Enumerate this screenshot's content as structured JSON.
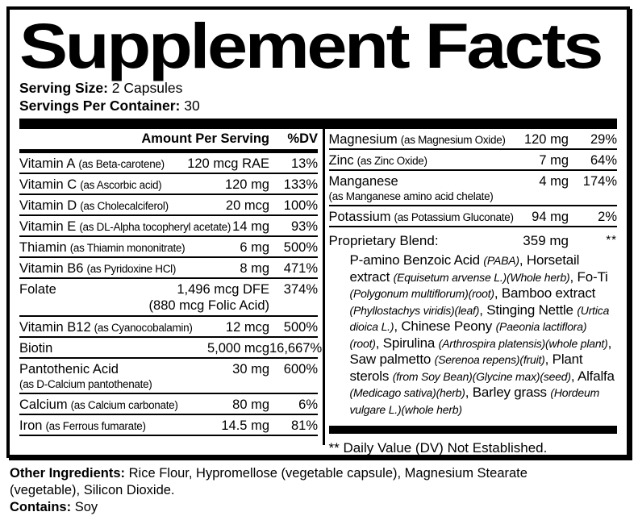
{
  "title": "Supplement Facts",
  "serving": {
    "size_label": "Serving Size:",
    "size_value": "2 Capsules",
    "container_label": "Servings Per Container:",
    "container_value": "30"
  },
  "table": {
    "header": {
      "amount": "Amount Per Serving",
      "dv": "%DV"
    },
    "left_rows": [
      {
        "name": "Vitamin A",
        "paren": "(as Beta-carotene)",
        "amount": "120 mcg RAE",
        "dv": "13%"
      },
      {
        "name": "Vitamin C",
        "paren": "(as Ascorbic acid)",
        "amount": "120 mg",
        "dv": "133%"
      },
      {
        "name": "Vitamin D",
        "paren": "(as Cholecalciferol)",
        "amount": "20 mcg",
        "dv": "100%"
      },
      {
        "name": "Vitamin E",
        "paren": "(as DL-Alpha tocopheryl acetate)",
        "amount": "14 mg",
        "dv": "93%"
      },
      {
        "name": "Thiamin",
        "paren": "(as Thiamin mononitrate)",
        "amount": "6 mg",
        "dv": "500%"
      },
      {
        "name": "Vitamin B6",
        "paren": "(as Pyridoxine HCl)",
        "amount": "8 mg",
        "dv": "471%"
      },
      {
        "name": "Folate",
        "amount": "1,496 mcg DFE",
        "amount2": "(880 mcg Folic Acid)",
        "dv": "374%"
      },
      {
        "name": "Vitamin B12",
        "paren": "(as Cyanocobalamin)",
        "amount": "12 mcg",
        "dv": "500%"
      },
      {
        "name": "Biotin",
        "amount": "5,000 mcg",
        "dv": "16,667%"
      },
      {
        "name": "Pantothenic Acid",
        "paren2": "(as D-Calcium pantothenate)",
        "amount": "30 mg",
        "dv": "600%"
      },
      {
        "name": "Calcium",
        "paren": "(as Calcium carbonate)",
        "amount": "80 mg",
        "dv": "6%"
      },
      {
        "name": "Iron",
        "paren": "(as Ferrous fumarate)",
        "amount": "14.5 mg",
        "dv": "81%"
      }
    ],
    "right_rows": [
      {
        "name": "Magnesium",
        "paren": "(as Magnesium Oxide)",
        "amount": "120 mg",
        "dv": "29%"
      },
      {
        "name": "Zinc",
        "paren": "(as Zinc Oxide)",
        "amount": "7 mg",
        "dv": "64%"
      },
      {
        "name": "Manganese",
        "paren2": "(as Manganese amino acid chelate)",
        "amount": "4 mg",
        "dv": "174%"
      },
      {
        "name": "Potassium",
        "paren": "(as Potassium Gluconate)",
        "amount": "94 mg",
        "dv": "2%"
      }
    ]
  },
  "blend": {
    "label": "Proprietary Blend:",
    "amount": "359 mg",
    "dv": "**",
    "ingredients": [
      {
        "text": "P-amino Benzoic Acid ",
        "italic": false
      },
      {
        "text": "(PABA)",
        "italic": true
      },
      {
        "text": ", Horsetail extract ",
        "italic": false
      },
      {
        "text": "(Equisetum arvense L.)(Whole herb)",
        "italic": true
      },
      {
        "text": ", Fo-Ti ",
        "italic": false
      },
      {
        "text": "(Polygonum multiflorum)(root)",
        "italic": true
      },
      {
        "text": ", Bamboo extract ",
        "italic": false
      },
      {
        "text": "(Phyllostachys viridis)(leaf)",
        "italic": true
      },
      {
        "text": ", Stinging Nettle ",
        "italic": false
      },
      {
        "text": "(Urtica dioica L.)",
        "italic": true
      },
      {
        "text": ", Chinese Peony ",
        "italic": false
      },
      {
        "text": "(Paeonia lactiflora)(root)",
        "italic": true
      },
      {
        "text": ", Spirulina ",
        "italic": false
      },
      {
        "text": "(Arthrospira platensis)(whole plant)",
        "italic": true
      },
      {
        "text": ", Saw palmetto ",
        "italic": false
      },
      {
        "text": "(Serenoa repens)(fruit)",
        "italic": true
      },
      {
        "text": ", Plant sterols ",
        "italic": false
      },
      {
        "text": "(from Soy Bean)(Glycine max)(seed)",
        "italic": true
      },
      {
        "text": ", Alfalfa ",
        "italic": false
      },
      {
        "text": "(Medicago sativa)(herb)",
        "italic": true
      },
      {
        "text": ", Barley grass ",
        "italic": false
      },
      {
        "text": "(Hordeum vulgare L.)(whole herb)",
        "italic": true
      }
    ]
  },
  "footnote": "** Daily Value (DV) Not Established.",
  "other_ingredients": {
    "label": "Other Ingredients:",
    "value": "Rice Flour, Hypromellose (vegetable capsule), Magnesium Stearate (vegetable), Silicon Dioxide."
  },
  "contains": {
    "label": "Contains:",
    "value": "Soy"
  },
  "colors": {
    "ink": "#000000",
    "background": "#ffffff"
  }
}
